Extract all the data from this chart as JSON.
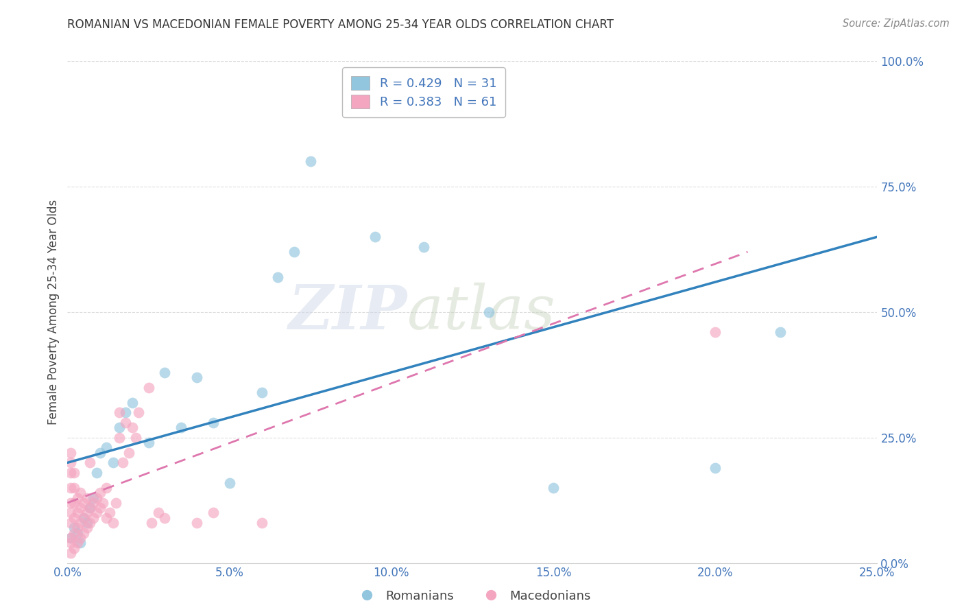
{
  "title": "ROMANIAN VS MACEDONIAN FEMALE POVERTY AMONG 25-34 YEAR OLDS CORRELATION CHART",
  "source": "Source: ZipAtlas.com",
  "ylabel_label": "Female Poverty Among 25-34 Year Olds",
  "legend_r_romanian": "R = 0.429",
  "legend_n_romanian": "N = 31",
  "legend_r_macedonian": "R = 0.383",
  "legend_n_macedonian": "N = 61",
  "legend_label1": "Romanians",
  "legend_label2": "Macedonians",
  "xlim": [
    0.0,
    0.25
  ],
  "ylim": [
    0.0,
    1.0
  ],
  "romanian_color": "#92c5de",
  "macedonian_color": "#f4a6c0",
  "romanian_line_color": "#3182bd",
  "macedonian_line_color": "#de77ae",
  "watermark_zip": "ZIP",
  "watermark_atlas": "atlas",
  "romanian_points": [
    [
      0.001,
      0.05
    ],
    [
      0.002,
      0.07
    ],
    [
      0.003,
      0.06
    ],
    [
      0.004,
      0.04
    ],
    [
      0.005,
      0.09
    ],
    [
      0.006,
      0.08
    ],
    [
      0.007,
      0.11
    ],
    [
      0.008,
      0.13
    ],
    [
      0.009,
      0.18
    ],
    [
      0.01,
      0.22
    ],
    [
      0.012,
      0.23
    ],
    [
      0.014,
      0.2
    ],
    [
      0.016,
      0.27
    ],
    [
      0.018,
      0.3
    ],
    [
      0.02,
      0.32
    ],
    [
      0.025,
      0.24
    ],
    [
      0.03,
      0.38
    ],
    [
      0.035,
      0.27
    ],
    [
      0.04,
      0.37
    ],
    [
      0.045,
      0.28
    ],
    [
      0.05,
      0.16
    ],
    [
      0.06,
      0.34
    ],
    [
      0.065,
      0.57
    ],
    [
      0.07,
      0.62
    ],
    [
      0.075,
      0.8
    ],
    [
      0.095,
      0.65
    ],
    [
      0.11,
      0.63
    ],
    [
      0.13,
      0.5
    ],
    [
      0.15,
      0.15
    ],
    [
      0.2,
      0.19
    ],
    [
      0.22,
      0.46
    ]
  ],
  "macedonian_points": [
    [
      0.001,
      0.02
    ],
    [
      0.001,
      0.04
    ],
    [
      0.001,
      0.05
    ],
    [
      0.001,
      0.08
    ],
    [
      0.001,
      0.1
    ],
    [
      0.001,
      0.12
    ],
    [
      0.001,
      0.15
    ],
    [
      0.001,
      0.18
    ],
    [
      0.001,
      0.2
    ],
    [
      0.001,
      0.22
    ],
    [
      0.002,
      0.03
    ],
    [
      0.002,
      0.06
    ],
    [
      0.002,
      0.09
    ],
    [
      0.002,
      0.12
    ],
    [
      0.002,
      0.15
    ],
    [
      0.002,
      0.18
    ],
    [
      0.003,
      0.04
    ],
    [
      0.003,
      0.07
    ],
    [
      0.003,
      0.1
    ],
    [
      0.003,
      0.13
    ],
    [
      0.004,
      0.05
    ],
    [
      0.004,
      0.08
    ],
    [
      0.004,
      0.11
    ],
    [
      0.004,
      0.14
    ],
    [
      0.005,
      0.06
    ],
    [
      0.005,
      0.09
    ],
    [
      0.005,
      0.12
    ],
    [
      0.006,
      0.07
    ],
    [
      0.006,
      0.1
    ],
    [
      0.006,
      0.13
    ],
    [
      0.007,
      0.08
    ],
    [
      0.007,
      0.11
    ],
    [
      0.007,
      0.2
    ],
    [
      0.008,
      0.09
    ],
    [
      0.008,
      0.12
    ],
    [
      0.009,
      0.1
    ],
    [
      0.009,
      0.13
    ],
    [
      0.01,
      0.11
    ],
    [
      0.01,
      0.14
    ],
    [
      0.011,
      0.12
    ],
    [
      0.012,
      0.09
    ],
    [
      0.012,
      0.15
    ],
    [
      0.013,
      0.1
    ],
    [
      0.014,
      0.08
    ],
    [
      0.015,
      0.12
    ],
    [
      0.016,
      0.25
    ],
    [
      0.016,
      0.3
    ],
    [
      0.017,
      0.2
    ],
    [
      0.018,
      0.28
    ],
    [
      0.019,
      0.22
    ],
    [
      0.02,
      0.27
    ],
    [
      0.021,
      0.25
    ],
    [
      0.022,
      0.3
    ],
    [
      0.025,
      0.35
    ],
    [
      0.026,
      0.08
    ],
    [
      0.028,
      0.1
    ],
    [
      0.03,
      0.09
    ],
    [
      0.04,
      0.08
    ],
    [
      0.045,
      0.1
    ],
    [
      0.06,
      0.08
    ],
    [
      0.2,
      0.46
    ]
  ],
  "grid_color": "#dddddd",
  "tick_color": "#4477bb",
  "title_color": "#333333",
  "source_color": "#888888"
}
